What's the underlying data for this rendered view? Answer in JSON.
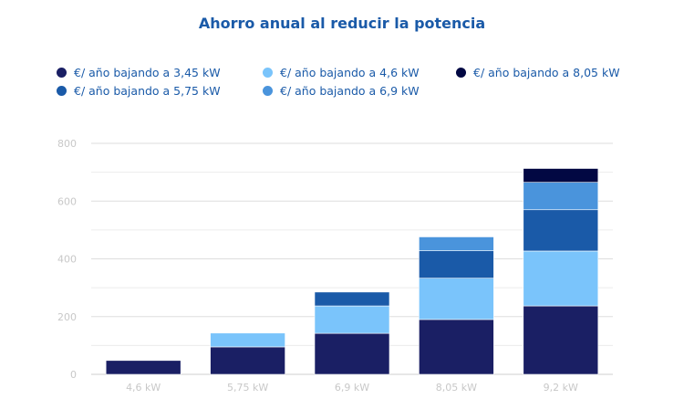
{
  "chart_data": {
    "type": "bar",
    "stacked": true,
    "title": "Ahorro anual al reducir la potencia",
    "xlabel": "",
    "ylabel": "",
    "categories": [
      "4,6 kW",
      "5,75 kW",
      "6,9 kW",
      "8,05 kW",
      "9,2 kW"
    ],
    "ylim": [
      0,
      800
    ],
    "yticks": [
      0,
      200,
      400,
      600,
      800
    ],
    "grid": true,
    "legend_position": "top",
    "series": [
      {
        "name": "€/ año bajando a 3,45 kW",
        "color": "#1a1f64",
        "values": [
          48,
          95,
          142,
          190,
          237
        ]
      },
      {
        "name": "€/ año bajando a 4,6 kW",
        "color": "#7ac4fb",
        "values": [
          0,
          48,
          95,
          143,
          190
        ]
      },
      {
        "name": "€/ año bajando a 5,75 kW",
        "color": "#1a5aa8",
        "values": [
          0,
          0,
          48,
          95,
          143
        ]
      },
      {
        "name": "€/ año bajando a 6,9 kW",
        "color": "#4a94dc",
        "values": [
          0,
          0,
          0,
          48,
          95
        ]
      },
      {
        "name": "€/ año bajando a 8,05 kW",
        "color": "#020843",
        "values": [
          0,
          0,
          0,
          0,
          48
        ]
      }
    ]
  }
}
